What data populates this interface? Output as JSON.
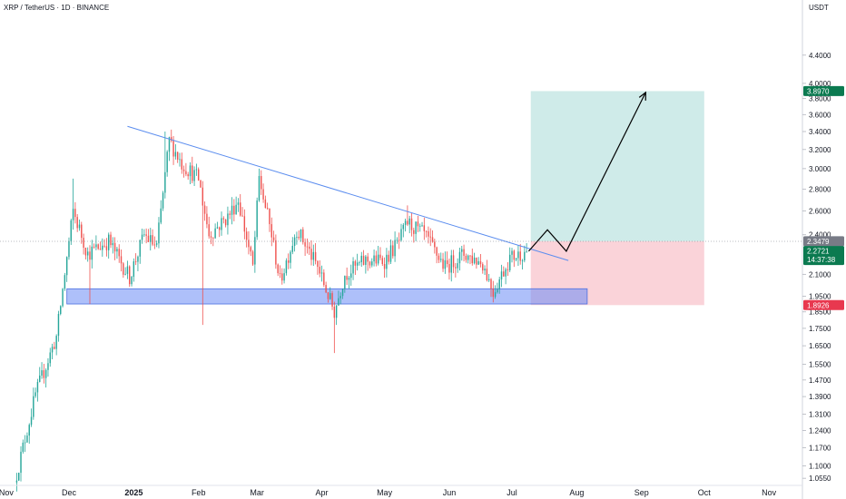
{
  "header": {
    "title": "XRP / TetherUS · 1D · BINANCE",
    "currency": "USDT"
  },
  "colors": {
    "up": "#26a69a",
    "down": "#ef5350",
    "trendline": "#5b8def",
    "support_zone": "#6b8cf5",
    "target_zone": "#26a69a",
    "stop_zone": "#f28b9b",
    "axis_text": "#131722",
    "current_badge": "#0b7a50",
    "target_badge": "#0b7a50",
    "stop_badge": "#e8384f",
    "upper_badge": "#787b86"
  },
  "chart_data": {
    "type": "candlestick",
    "title": "XRP / TetherUS · 1D · BINANCE",
    "y_unit": "USDT",
    "y_scale": "log",
    "y_range": [
      1.03,
      5.3
    ],
    "x_range": [
      "2024-10-29",
      "2025-11-17"
    ],
    "x_ticks": [
      {
        "date": "2024-11-01",
        "label": "Nov"
      },
      {
        "date": "2024-12-01",
        "label": "Dec"
      },
      {
        "date": "2025-01-01",
        "label": "2025",
        "bold": true
      },
      {
        "date": "2025-02-01",
        "label": "Feb"
      },
      {
        "date": "2025-03-01",
        "label": "Mar"
      },
      {
        "date": "2025-04-01",
        "label": "Apr"
      },
      {
        "date": "2025-05-01",
        "label": "May"
      },
      {
        "date": "2025-06-01",
        "label": "Jun"
      },
      {
        "date": "2025-07-01",
        "label": "Jul"
      },
      {
        "date": "2025-08-01",
        "label": "Aug"
      },
      {
        "date": "2025-09-01",
        "label": "Sep"
      },
      {
        "date": "2025-10-01",
        "label": "Oct"
      },
      {
        "date": "2025-11-01",
        "label": "Nov"
      }
    ],
    "y_ticks": [
      "4.4000",
      "4.0000",
      "3.8000",
      "3.6000",
      "3.4000",
      "3.2000",
      "3.0000",
      "2.8000",
      "2.6000",
      "2.4000",
      "2.1000",
      "1.9500",
      "1.8500",
      "1.7500",
      "1.6500",
      "1.5500",
      "1.4700",
      "1.3900",
      "1.3100",
      "1.2400",
      "1.1700",
      "1.1000",
      "1.0550"
    ],
    "price_badges": [
      {
        "value": 3.897,
        "label": "3.8970",
        "role": "target"
      },
      {
        "value": 2.3479,
        "label": "2.3479",
        "role": "upper"
      },
      {
        "value": 2.2721,
        "label": "2.2721",
        "countdown": "14:37:38",
        "role": "current"
      },
      {
        "value": 1.8926,
        "label": "1.8926",
        "role": "stop"
      }
    ],
    "anchors": [
      {
        "date": "2024-11-05",
        "price": 1.04
      },
      {
        "date": "2024-11-15",
        "price": 1.4
      },
      {
        "date": "2024-11-25",
        "price": 1.7
      },
      {
        "date": "2024-12-03",
        "price": 2.6
      },
      {
        "date": "2024-12-10",
        "price": 2.25
      },
      {
        "date": "2024-12-20",
        "price": 2.35
      },
      {
        "date": "2024-12-30",
        "price": 2.08
      },
      {
        "date": "2025-01-06",
        "price": 2.4
      },
      {
        "date": "2025-01-12",
        "price": 2.3
      },
      {
        "date": "2025-01-18",
        "price": 3.3
      },
      {
        "date": "2025-01-24",
        "price": 3.05
      },
      {
        "date": "2025-02-01",
        "price": 2.9
      },
      {
        "date": "2025-02-06",
        "price": 2.4
      },
      {
        "date": "2025-02-15",
        "price": 2.55
      },
      {
        "date": "2025-02-20",
        "price": 2.7
      },
      {
        "date": "2025-02-27",
        "price": 2.15
      },
      {
        "date": "2025-03-02",
        "price": 2.9
      },
      {
        "date": "2025-03-08",
        "price": 2.4
      },
      {
        "date": "2025-03-12",
        "price": 2.05
      },
      {
        "date": "2025-03-20",
        "price": 2.45
      },
      {
        "date": "2025-03-30",
        "price": 2.15
      },
      {
        "date": "2025-04-07",
        "price": 1.85
      },
      {
        "date": "2025-04-12",
        "price": 2.1
      },
      {
        "date": "2025-04-22",
        "price": 2.2
      },
      {
        "date": "2025-05-01",
        "price": 2.2
      },
      {
        "date": "2025-05-08",
        "price": 2.35
      },
      {
        "date": "2025-05-12",
        "price": 2.5
      },
      {
        "date": "2025-05-20",
        "price": 2.4
      },
      {
        "date": "2025-05-30",
        "price": 2.15
      },
      {
        "date": "2025-06-08",
        "price": 2.25
      },
      {
        "date": "2025-06-17",
        "price": 2.18
      },
      {
        "date": "2025-06-22",
        "price": 1.98
      },
      {
        "date": "2025-06-30",
        "price": 2.22
      },
      {
        "date": "2025-07-08",
        "price": 2.27
      }
    ],
    "wick_events": [
      {
        "date": "2024-12-03",
        "high": 2.9
      },
      {
        "date": "2024-12-11",
        "low": 1.9
      },
      {
        "date": "2025-01-16",
        "high": 3.4
      },
      {
        "date": "2025-02-03",
        "low": 1.77
      },
      {
        "date": "2025-03-02",
        "high": 3.0
      },
      {
        "date": "2025-04-07",
        "low": 1.61
      },
      {
        "date": "2025-05-12",
        "high": 2.65
      },
      {
        "date": "2025-06-22",
        "low": 1.91
      }
    ],
    "trendline": {
      "start": {
        "date": "2024-12-29",
        "price": 3.46
      },
      "end": {
        "date": "2025-07-28",
        "price": 2.2
      }
    },
    "support_zone": {
      "start": "2024-11-30",
      "end": "2025-08-06",
      "low": 1.9,
      "high": 2.0
    },
    "target_zone": {
      "start": "2025-07-10",
      "end": "2025-10-01",
      "low": 2.3479,
      "high": 3.897
    },
    "stop_zone": {
      "start": "2025-07-10",
      "end": "2025-10-01",
      "low": 1.8926,
      "high": 2.3479
    },
    "projection_path": [
      {
        "date": "2025-07-09",
        "price": 2.27
      },
      {
        "date": "2025-07-18",
        "price": 2.44
      },
      {
        "date": "2025-07-27",
        "price": 2.27
      },
      {
        "date": "2025-09-03",
        "price": 3.88
      }
    ]
  }
}
